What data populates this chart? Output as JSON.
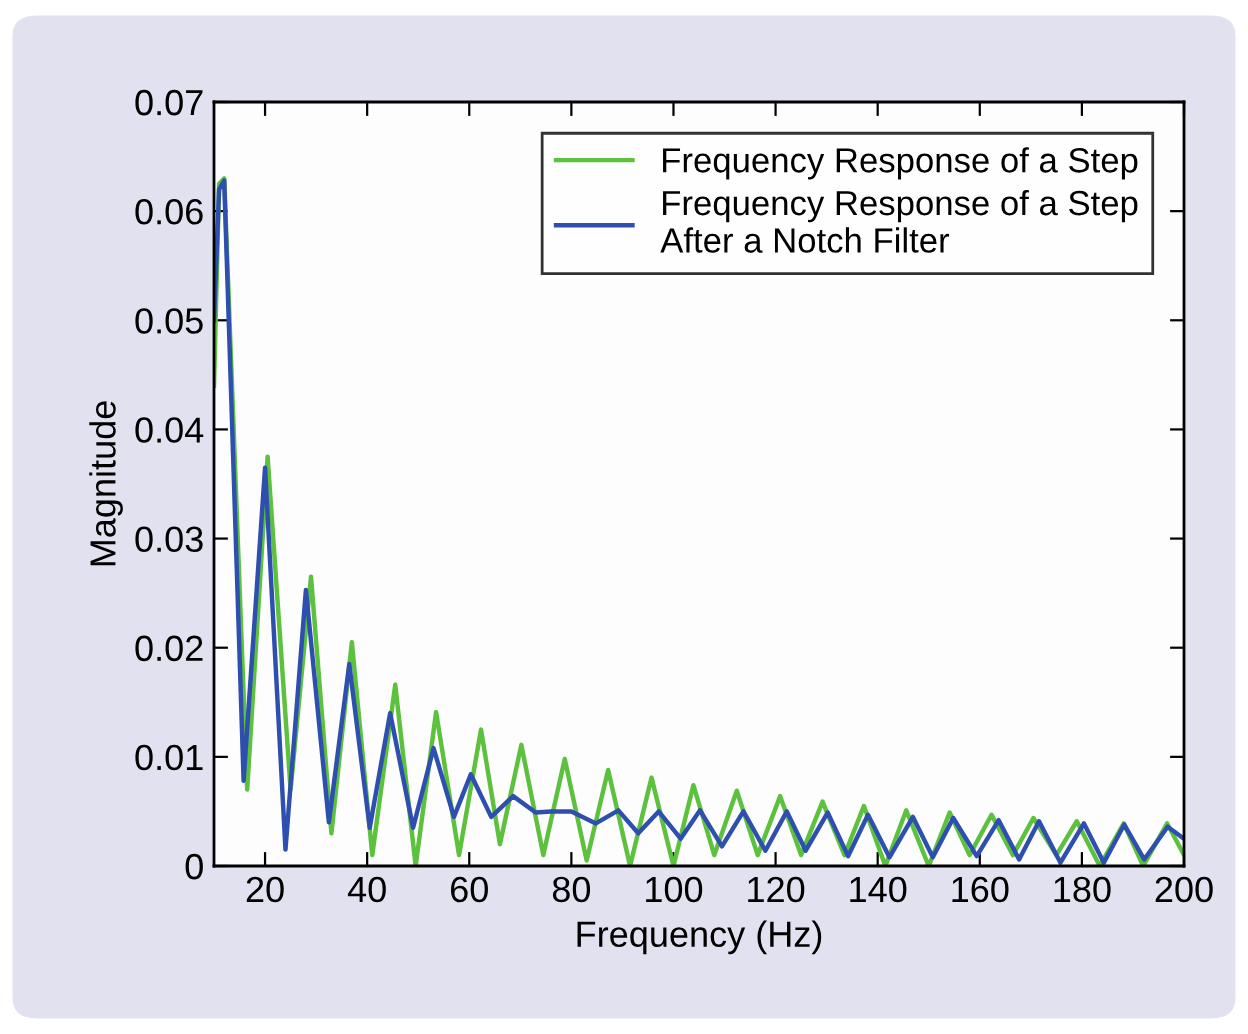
{
  "chart_data": {
    "type": "line",
    "xlabel": "Frequency (Hz)",
    "ylabel": "Magnitude",
    "xlim": [
      10,
      200
    ],
    "ylim": [
      0,
      0.07
    ],
    "xticks": [
      20,
      40,
      60,
      80,
      100,
      120,
      140,
      160,
      180,
      200
    ],
    "yticks": [
      0,
      0.01,
      0.02,
      0.03,
      0.04,
      0.05,
      0.06,
      0.07
    ],
    "grid": false,
    "legend": "top right",
    "marker": "none",
    "line_style": "solid",
    "series": [
      {
        "name": "Frequency Response of a Step",
        "color": "#5cc13c",
        "x": [
          10,
          11,
          12,
          16.5,
          20.5,
          25,
          29,
          33,
          37,
          41,
          45.5,
          49.5,
          53.5,
          58,
          62.3,
          66,
          70.2,
          74.5,
          78.7,
          83,
          87.2,
          91.5,
          95.7,
          100,
          103.9,
          108,
          112.4,
          116.5,
          120.9,
          125,
          129.2,
          133.5,
          137.3,
          141.5,
          145.6,
          150,
          154.1,
          158,
          162.3,
          166.5,
          170.5,
          175,
          179,
          183.5,
          188.2,
          192,
          196.7,
          200
        ],
        "values": [
          0.044,
          0.0625,
          0.063,
          0.007,
          0.0375,
          0.007,
          0.0265,
          0.003,
          0.0205,
          0.001,
          0.0166,
          0.0,
          0.0141,
          0.001,
          0.0125,
          0.002,
          0.0111,
          0.001,
          0.0098,
          0.0005,
          0.0088,
          0.0,
          0.0081,
          0.0,
          0.0074,
          0.001,
          0.0069,
          0.001,
          0.0064,
          0.001,
          0.0059,
          0.001,
          0.0055,
          0.0,
          0.0051,
          0.0,
          0.0049,
          0.001,
          0.0047,
          0.001,
          0.0044,
          0.001,
          0.0041,
          0.0,
          0.0039,
          0.0,
          0.0039,
          0.001
        ]
      },
      {
        "name": "Frequency Response of a Step\nAfter a Notch Filter",
        "color": "#2e4fb0",
        "x": [
          10,
          11,
          12,
          15.8,
          20,
          24,
          28,
          32.5,
          36.5,
          40.5,
          44.5,
          49,
          53,
          57,
          60.3,
          64.3,
          68.6,
          73,
          76,
          80,
          84.8,
          89.2,
          93.1,
          97.1,
          101.4,
          105.2,
          109.5,
          113.7,
          118,
          122.2,
          125.9,
          130.2,
          134.2,
          138.1,
          142.3,
          146.9,
          150.8,
          154.8,
          159.4,
          163.7,
          167.7,
          171.6,
          175.8,
          180.4,
          184.3,
          188.3,
          192.2,
          196.8,
          200
        ],
        "values": [
          0.05,
          0.062,
          0.0628,
          0.0078,
          0.0365,
          0.0015,
          0.0253,
          0.004,
          0.0185,
          0.0035,
          0.014,
          0.0035,
          0.0108,
          0.0045,
          0.0084,
          0.0045,
          0.0064,
          0.0049,
          0.005,
          0.005,
          0.0039,
          0.0051,
          0.003,
          0.005,
          0.0025,
          0.0051,
          0.0018,
          0.005,
          0.0014,
          0.005,
          0.0014,
          0.0049,
          0.0009,
          0.0047,
          0.0008,
          0.0045,
          0.0008,
          0.0044,
          0.0009,
          0.0042,
          0.0006,
          0.0041,
          0.0003,
          0.0039,
          0.0003,
          0.0038,
          0.0006,
          0.0036,
          0.0025
        ]
      }
    ]
  }
}
